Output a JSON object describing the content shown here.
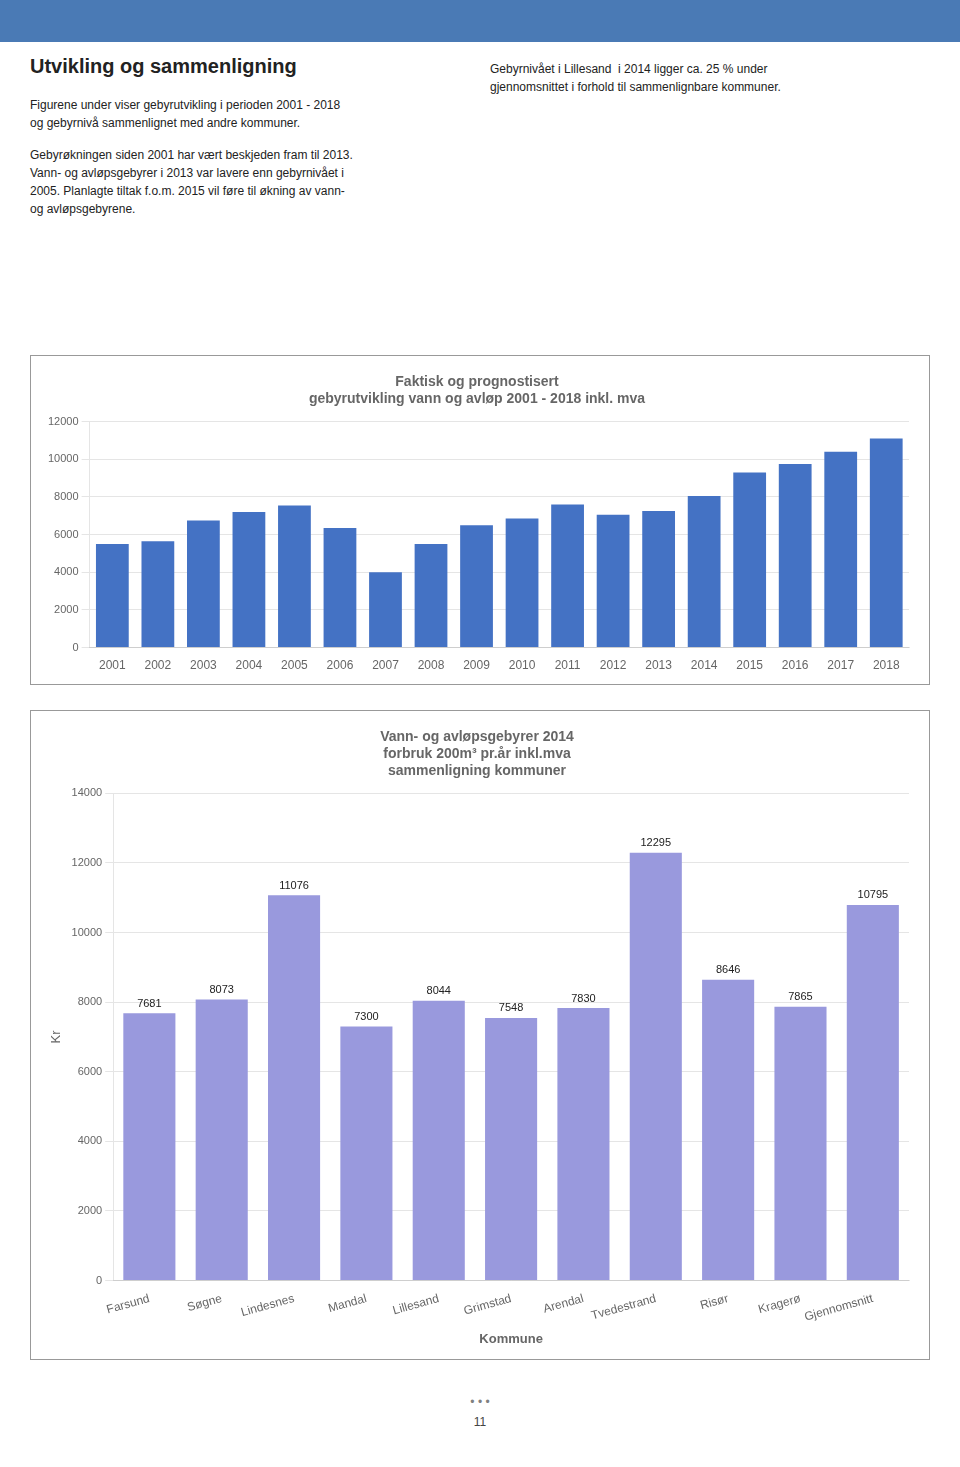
{
  "title": "Utvikling og sammenligning",
  "text_left": [
    [
      "Figurene under viser gebyrutvikling i perioden 2001 - 2018",
      "og gebyrnivå sammenlignet med andre kommuner."
    ],
    [
      "Gebyrøkningen siden 2001 har vært beskjeden fram til 2013.",
      "Vann- og avløpsgebyrer i 2013 var lavere enn gebyrnivået i",
      "2005. Planlagte tiltak f.o.m. 2015 vil føre til økning av vann-",
      "og avløpsgebyrene."
    ]
  ],
  "text_right": [
    [
      "Gebyrnivået i Lillesand  i 2014 ligger ca. 25 % under",
      "gjennomsnittet i forhold til sammenlignbare kommuner."
    ]
  ],
  "footer": [
    "• • •",
    "11"
  ],
  "chart_data": [
    {
      "type": "bar",
      "title": [
        "Faktisk og prognostisert",
        "gebyrutvikling vann og avløp 2001 - 2018 inkl. mva"
      ],
      "categories": [
        "2001",
        "2002",
        "2003",
        "2004",
        "2005",
        "2006",
        "2007",
        "2008",
        "2009",
        "2010",
        "2011",
        "2012",
        "2013",
        "2014",
        "2015",
        "2016",
        "2017",
        "2018"
      ],
      "values": [
        5500,
        5650,
        6750,
        7200,
        7550,
        6350,
        4000,
        5500,
        6500,
        6850,
        7600,
        7050,
        7250,
        8050,
        9300,
        9750,
        10400,
        11100
      ],
      "color": "#4472c4",
      "ylim": [
        0,
        12000
      ],
      "yticks": [
        0,
        2000,
        4000,
        6000,
        8000,
        10000,
        12000
      ],
      "grid": true
    },
    {
      "type": "bar",
      "title": [
        "Vann- og avløpsgebyrer 2014",
        "forbruk 200m³ pr.år inkl.mva",
        "sammenligning kommuner"
      ],
      "categories": [
        "Farsund",
        "Søgne",
        "Lindesnes",
        "Mandal",
        "Lillesand",
        "Grimstad",
        "Arendal",
        "Tvedestrand",
        "Risør",
        "Kragerø",
        "Gjennomsnitt"
      ],
      "values": [
        7681,
        8073,
        11076,
        7300,
        8044,
        7548,
        7830,
        12295,
        8646,
        7865,
        10795
      ],
      "color": "#9999dd",
      "ylim": [
        0,
        14000
      ],
      "yticks": [
        0,
        2000,
        4000,
        6000,
        8000,
        10000,
        12000,
        14000
      ],
      "grid": true,
      "data_labels": true,
      "xlabel": "Kommune",
      "ylabel": "Kr"
    }
  ]
}
